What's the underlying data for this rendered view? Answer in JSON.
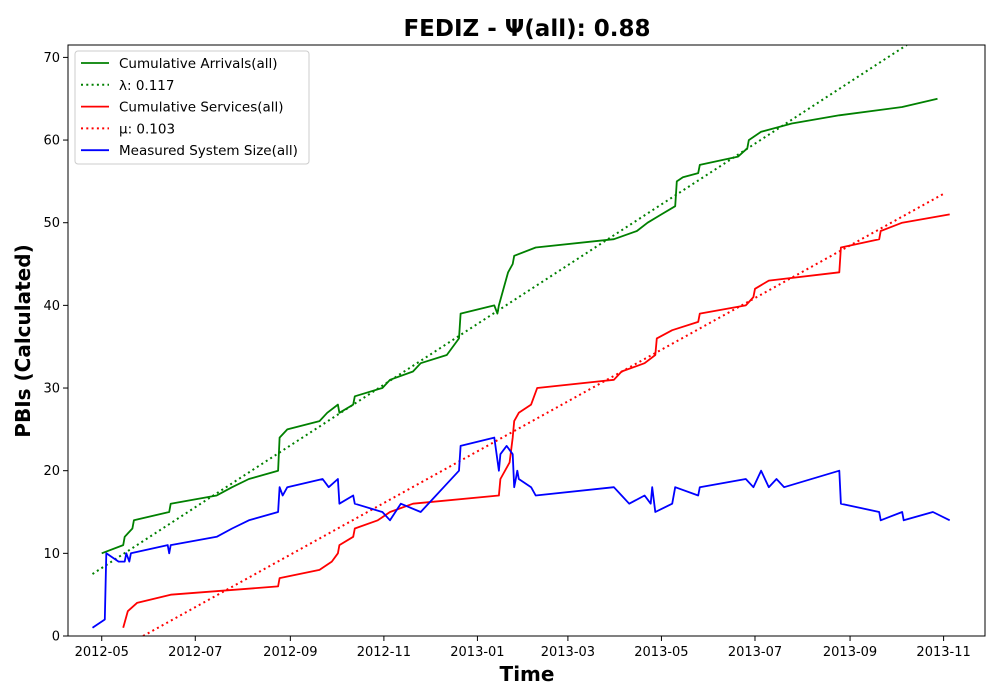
{
  "chart_data": {
    "type": "line",
    "title": "FEDIZ -  Ψ(all): 0.88",
    "xlabel": "Time",
    "ylabel": "PBIs (Calculated)",
    "xlim": [
      "2012-04-09",
      "2013-11-28"
    ],
    "ylim": [
      0,
      71.5
    ],
    "x_ticks": [
      "2012-05",
      "2012-07",
      "2012-09",
      "2012-11",
      "2013-01",
      "2013-03",
      "2013-05",
      "2013-07",
      "2013-09",
      "2013-11"
    ],
    "y_ticks": [
      0,
      10,
      20,
      30,
      40,
      50,
      60,
      70
    ],
    "grid": false,
    "legend_position": "top-left",
    "series": [
      {
        "name": "Cumulative Arrivals(all)",
        "color": "#008000",
        "style": "solid",
        "points": [
          [
            "2012-05-01",
            10
          ],
          [
            "2012-05-15",
            11
          ],
          [
            "2012-05-16",
            12
          ],
          [
            "2012-05-21",
            13
          ],
          [
            "2012-05-22",
            14
          ],
          [
            "2012-06-14",
            15
          ],
          [
            "2012-06-15",
            16
          ],
          [
            "2012-07-15",
            17
          ],
          [
            "2012-07-20",
            17.5
          ],
          [
            "2012-07-25",
            18
          ],
          [
            "2012-08-05",
            19
          ],
          [
            "2012-08-24",
            20
          ],
          [
            "2012-08-25",
            24
          ],
          [
            "2012-08-30",
            25
          ],
          [
            "2012-09-20",
            26
          ],
          [
            "2012-09-25",
            27
          ],
          [
            "2012-10-02",
            28
          ],
          [
            "2012-10-03",
            27
          ],
          [
            "2012-10-12",
            28
          ],
          [
            "2012-10-13",
            29
          ],
          [
            "2012-10-31",
            30
          ],
          [
            "2012-11-05",
            31
          ],
          [
            "2012-11-20",
            32
          ],
          [
            "2012-11-25",
            33
          ],
          [
            "2012-12-12",
            34
          ],
          [
            "2012-12-20",
            36
          ],
          [
            "2012-12-21",
            39
          ],
          [
            "2013-01-12",
            40
          ],
          [
            "2013-01-14",
            39
          ],
          [
            "2013-01-15",
            40
          ],
          [
            "2013-01-18",
            42
          ],
          [
            "2013-01-21",
            44
          ],
          [
            "2013-01-24",
            45
          ],
          [
            "2013-01-25",
            46
          ],
          [
            "2013-02-08",
            47
          ],
          [
            "2013-03-31",
            48
          ],
          [
            "2013-04-15",
            49
          ],
          [
            "2013-04-22",
            50
          ],
          [
            "2013-05-01",
            51
          ],
          [
            "2013-05-10",
            52
          ],
          [
            "2013-05-11",
            55
          ],
          [
            "2013-05-15",
            55.5
          ],
          [
            "2013-05-25",
            56
          ],
          [
            "2013-05-26",
            57
          ],
          [
            "2013-06-20",
            58
          ],
          [
            "2013-06-26",
            59
          ],
          [
            "2013-06-27",
            60
          ],
          [
            "2013-07-05",
            61
          ],
          [
            "2013-07-25",
            62
          ],
          [
            "2013-08-25",
            63
          ],
          [
            "2013-10-05",
            64
          ],
          [
            "2013-10-28",
            65
          ]
        ]
      },
      {
        "name": "λ: 0.117",
        "color": "#008000",
        "style": "dotted",
        "points": [
          [
            "2012-04-25",
            7.5
          ],
          [
            "2013-10-08",
            71.5
          ]
        ]
      },
      {
        "name": "Cumulative Services(all)",
        "color": "#ff0000",
        "style": "solid",
        "points": [
          [
            "2012-05-15",
            1
          ],
          [
            "2012-05-18",
            3
          ],
          [
            "2012-05-24",
            4
          ],
          [
            "2012-06-15",
            5
          ],
          [
            "2012-08-24",
            6
          ],
          [
            "2012-08-25",
            7
          ],
          [
            "2012-09-20",
            8
          ],
          [
            "2012-09-28",
            9
          ],
          [
            "2012-10-02",
            10
          ],
          [
            "2012-10-03",
            11
          ],
          [
            "2012-10-12",
            12
          ],
          [
            "2012-10-13",
            13
          ],
          [
            "2012-10-28",
            14
          ],
          [
            "2012-11-05",
            15
          ],
          [
            "2012-11-20",
            16
          ],
          [
            "2013-01-15",
            17
          ],
          [
            "2013-01-16",
            19
          ],
          [
            "2013-01-22",
            21
          ],
          [
            "2013-01-24",
            24
          ],
          [
            "2013-01-25",
            26
          ],
          [
            "2013-01-28",
            27
          ],
          [
            "2013-02-05",
            28
          ],
          [
            "2013-02-09",
            30
          ],
          [
            "2013-03-31",
            31
          ],
          [
            "2013-04-05",
            32
          ],
          [
            "2013-04-20",
            33
          ],
          [
            "2013-04-27",
            34
          ],
          [
            "2013-04-28",
            36
          ],
          [
            "2013-05-08",
            37
          ],
          [
            "2013-05-25",
            38
          ],
          [
            "2013-05-26",
            39
          ],
          [
            "2013-06-25",
            40
          ],
          [
            "2013-06-30",
            41
          ],
          [
            "2013-07-01",
            42
          ],
          [
            "2013-07-10",
            43
          ],
          [
            "2013-08-25",
            44
          ],
          [
            "2013-08-26",
            47
          ],
          [
            "2013-09-20",
            48
          ],
          [
            "2013-09-21",
            49
          ],
          [
            "2013-10-05",
            50
          ],
          [
            "2013-11-05",
            51
          ]
        ]
      },
      {
        "name": "μ: 0.103",
        "color": "#ff0000",
        "style": "dotted",
        "points": [
          [
            "2012-05-28",
            0
          ],
          [
            "2013-11-01",
            53.5
          ]
        ]
      },
      {
        "name": "Measured System Size(all)",
        "color": "#0000ff",
        "style": "solid",
        "points": [
          [
            "2012-04-25",
            1
          ],
          [
            "2012-05-03",
            2
          ],
          [
            "2012-05-04",
            10
          ],
          [
            "2012-05-12",
            9
          ],
          [
            "2012-05-16",
            9
          ],
          [
            "2012-05-17",
            10
          ],
          [
            "2012-05-19",
            9
          ],
          [
            "2012-05-20",
            10
          ],
          [
            "2012-06-13",
            11
          ],
          [
            "2012-06-14",
            10
          ],
          [
            "2012-06-15",
            11
          ],
          [
            "2012-07-15",
            12
          ],
          [
            "2012-07-25",
            13
          ],
          [
            "2012-08-05",
            14
          ],
          [
            "2012-08-24",
            15
          ],
          [
            "2012-08-25",
            18
          ],
          [
            "2012-08-27",
            17
          ],
          [
            "2012-08-30",
            18
          ],
          [
            "2012-09-22",
            19
          ],
          [
            "2012-09-26",
            18
          ],
          [
            "2012-10-02",
            19
          ],
          [
            "2012-10-03",
            16
          ],
          [
            "2012-10-12",
            17
          ],
          [
            "2012-10-13",
            16
          ],
          [
            "2012-10-31",
            15
          ],
          [
            "2012-11-05",
            14
          ],
          [
            "2012-11-12",
            16
          ],
          [
            "2012-11-25",
            15
          ],
          [
            "2012-12-05",
            17
          ],
          [
            "2012-12-10",
            18
          ],
          [
            "2012-12-20",
            20
          ],
          [
            "2012-12-21",
            23
          ],
          [
            "2013-01-12",
            24
          ],
          [
            "2013-01-15",
            20
          ],
          [
            "2013-01-16",
            22
          ],
          [
            "2013-01-20",
            23
          ],
          [
            "2013-01-24",
            22
          ],
          [
            "2013-01-25",
            18
          ],
          [
            "2013-01-26",
            19
          ],
          [
            "2013-01-27",
            20
          ],
          [
            "2013-01-28",
            19
          ],
          [
            "2013-02-05",
            18
          ],
          [
            "2013-02-08",
            17
          ],
          [
            "2013-03-31",
            18
          ],
          [
            "2013-04-05",
            17
          ],
          [
            "2013-04-10",
            16
          ],
          [
            "2013-04-20",
            17
          ],
          [
            "2013-04-24",
            16
          ],
          [
            "2013-04-25",
            18
          ],
          [
            "2013-04-27",
            15
          ],
          [
            "2013-05-08",
            16
          ],
          [
            "2013-05-10",
            18
          ],
          [
            "2013-05-25",
            17
          ],
          [
            "2013-05-26",
            18
          ],
          [
            "2013-06-25",
            19
          ],
          [
            "2013-06-30",
            18
          ],
          [
            "2013-07-05",
            20
          ],
          [
            "2013-07-10",
            18
          ],
          [
            "2013-07-15",
            19
          ],
          [
            "2013-07-20",
            18
          ],
          [
            "2013-08-25",
            20
          ],
          [
            "2013-08-26",
            16
          ],
          [
            "2013-09-20",
            15
          ],
          [
            "2013-09-21",
            14
          ],
          [
            "2013-10-05",
            15
          ],
          [
            "2013-10-06",
            14
          ],
          [
            "2013-10-25",
            15
          ],
          [
            "2013-11-05",
            14
          ]
        ]
      }
    ]
  }
}
